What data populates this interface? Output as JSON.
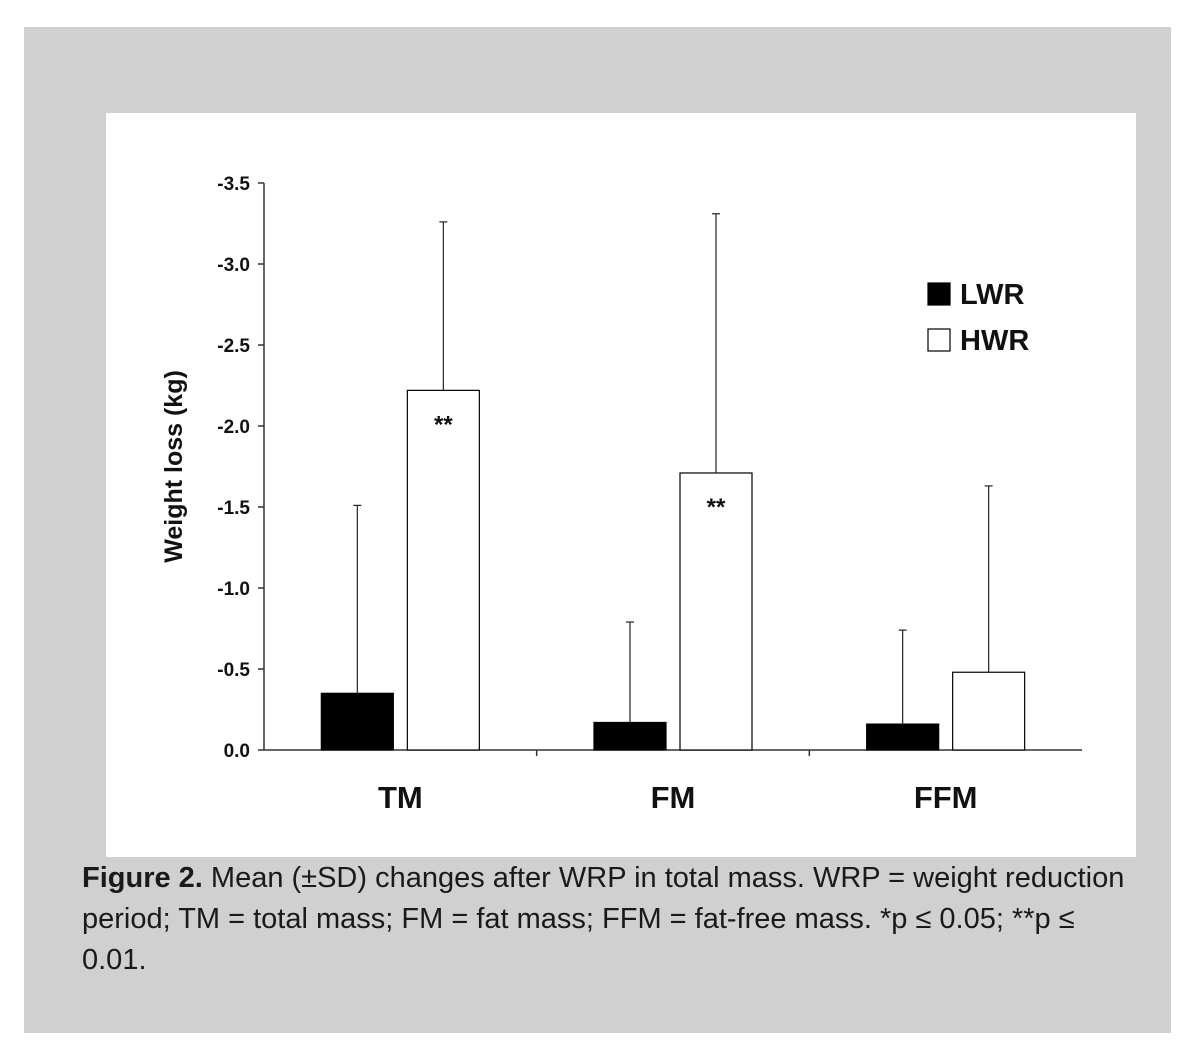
{
  "chart_data": {
    "type": "bar",
    "categories": [
      "TM",
      "FM",
      "FFM"
    ],
    "series": [
      {
        "name": "LWR",
        "values": [
          -0.35,
          -0.17,
          -0.16
        ],
        "sd": [
          1.16,
          0.62,
          0.58
        ],
        "color": "#000000"
      },
      {
        "name": "HWR",
        "values": [
          -2.22,
          -1.71,
          -0.48
        ],
        "sd": [
          1.04,
          1.6,
          1.15
        ],
        "color": "#ffffff"
      }
    ],
    "significance": [
      "**",
      "**",
      ""
    ],
    "ylabel": "Weight loss (kg)",
    "xlabel": "",
    "yticks": [
      "-3.5",
      "-3.0",
      "-2.5",
      "-2.0",
      "-1.5",
      "-1.0",
      "-0.5",
      "0.0"
    ],
    "ylim": [
      0,
      -3.5
    ],
    "y_inverted": true,
    "grid": false,
    "legend_position": "top-right"
  },
  "caption": {
    "label": "Figure 2.",
    "text": " Mean (±SD) changes after WRP in total mass. WRP = weight reduction period; TM = total mass; FM = fat mass; FFM = fat-free mass. *p ≤ 0.05; **p ≤ 0.01."
  }
}
